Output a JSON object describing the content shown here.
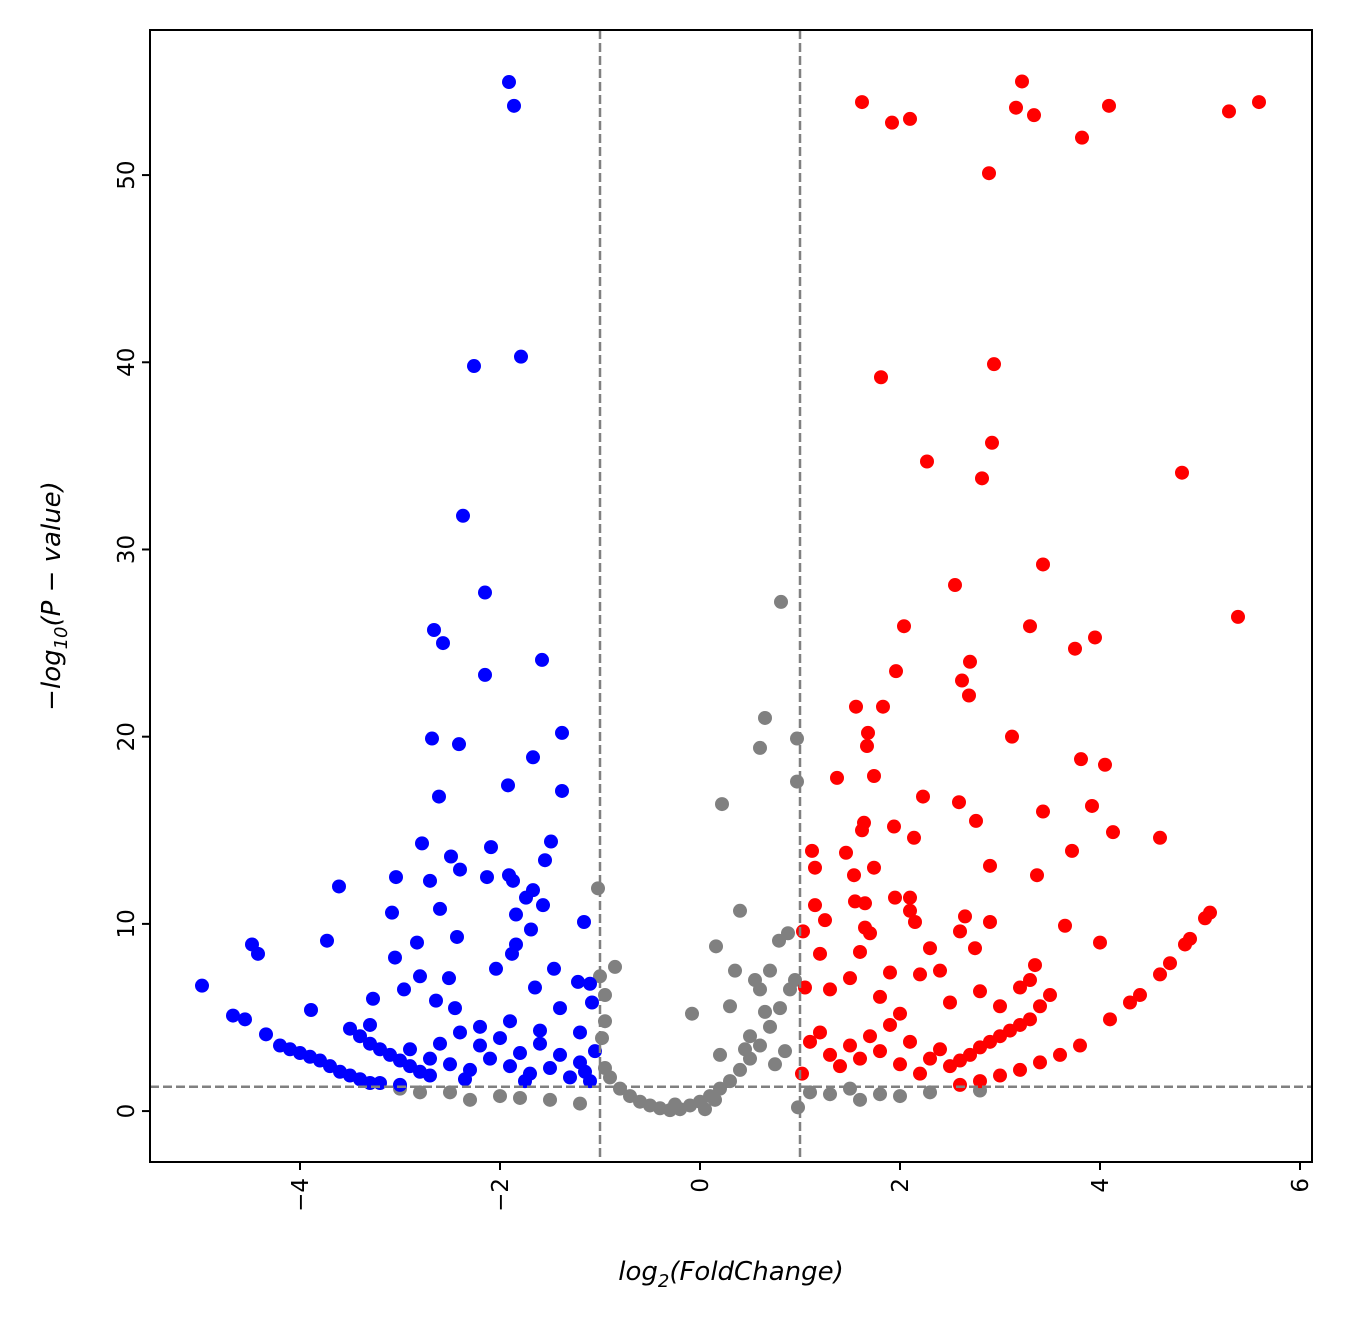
{
  "chart_data": {
    "type": "scatter",
    "title": "",
    "xlabel": {
      "base": "log",
      "sub": "2",
      "rest": "(FoldChange)"
    },
    "ylabel": {
      "base": "−log",
      "sub": "10",
      "rest": "(P − value)"
    },
    "xlim": [
      -5.5,
      6.12
    ],
    "ylim": [
      -2.72,
      57.75
    ],
    "x_ticks": [
      -4,
      -2,
      0,
      2,
      4,
      6
    ],
    "x_tick_labels": [
      "−4",
      "−2",
      "0",
      "2",
      "4",
      "6"
    ],
    "y_ticks": [
      0,
      10,
      20,
      30,
      40,
      50
    ],
    "y_tick_labels": [
      "0",
      "10",
      "20",
      "30",
      "40",
      "50"
    ],
    "grid": false,
    "threshold_lines": {
      "x": [
        -1,
        1
      ],
      "y": 1.3,
      "color": "#808080",
      "style": "dashed"
    },
    "series": [
      {
        "color": "#808080",
        "points": [
          [
            0.81,
            27.2
          ],
          [
            0.65,
            21.0
          ],
          [
            0.6,
            19.4
          ],
          [
            0.97,
            19.9
          ],
          [
            0.97,
            17.6
          ],
          [
            0.22,
            16.4
          ],
          [
            -1.02,
            11.9
          ],
          [
            0.4,
            10.7
          ],
          [
            0.16,
            8.8
          ],
          [
            -0.85,
            7.7
          ],
          [
            -0.08,
            5.2
          ],
          [
            0.79,
            9.1
          ],
          [
            0.88,
            9.5
          ],
          [
            -1.0,
            7.2
          ],
          [
            -0.9,
            1.8
          ],
          [
            -0.8,
            1.2
          ],
          [
            -0.7,
            0.8
          ],
          [
            -0.6,
            0.5
          ],
          [
            -0.5,
            0.3
          ],
          [
            -0.4,
            0.15
          ],
          [
            -0.3,
            0.05
          ],
          [
            -0.2,
            0.1
          ],
          [
            -0.1,
            0.3
          ],
          [
            0,
            0.5
          ],
          [
            0.1,
            0.8
          ],
          [
            0.2,
            1.2
          ],
          [
            0.3,
            1.6
          ],
          [
            0.4,
            2.2
          ],
          [
            0.5,
            2.8
          ],
          [
            0.6,
            3.5
          ],
          [
            0.7,
            4.5
          ],
          [
            0.8,
            5.5
          ],
          [
            0.9,
            6.5
          ],
          [
            0.95,
            7.0
          ],
          [
            0.5,
            4.0
          ],
          [
            0.6,
            6.5
          ],
          [
            0.7,
            7.5
          ],
          [
            0.3,
            5.6
          ],
          [
            0.35,
            7.5
          ],
          [
            0.55,
            7.0
          ],
          [
            0.45,
            3.3
          ],
          [
            0.65,
            5.3
          ],
          [
            0.85,
            3.2
          ],
          [
            0.75,
            2.5
          ],
          [
            0.2,
            3.0
          ],
          [
            -0.95,
            4.8
          ],
          [
            -0.95,
            6.2
          ],
          [
            -0.95,
            2.3
          ],
          [
            -0.98,
            3.9
          ],
          [
            -2.0,
            0.8
          ],
          [
            -3.0,
            1.2
          ],
          [
            -2.5,
            1.0
          ],
          [
            -1.5,
            0.6
          ],
          [
            -1.2,
            0.4
          ],
          [
            1.3,
            0.9
          ],
          [
            1.6,
            0.6
          ],
          [
            2.0,
            0.8
          ],
          [
            2.3,
            1.0
          ],
          [
            2.8,
            1.1
          ],
          [
            1.5,
            1.2
          ],
          [
            0.98,
            0.2
          ],
          [
            -1.8,
            0.7
          ],
          [
            -2.3,
            0.6
          ],
          [
            -2.8,
            1.0
          ],
          [
            1.8,
            0.9
          ],
          [
            1.1,
            1.0
          ],
          [
            0.05,
            0.1
          ],
          [
            -0.25,
            0.35
          ],
          [
            0.15,
            0.6
          ]
        ]
      },
      {
        "color": "#0000ff",
        "points": [
          [
            -1.91,
            54.97
          ],
          [
            -1.86,
            53.7
          ],
          [
            -1.79,
            40.3
          ],
          [
            -2.26,
            39.8
          ],
          [
            -2.37,
            31.8
          ],
          [
            -2.15,
            27.7
          ],
          [
            -2.66,
            25.7
          ],
          [
            -2.57,
            25.0
          ],
          [
            -1.58,
            24.1
          ],
          [
            -2.15,
            23.3
          ],
          [
            -1.38,
            20.2
          ],
          [
            -2.68,
            19.9
          ],
          [
            -2.41,
            19.6
          ],
          [
            -1.67,
            18.9
          ],
          [
            -1.92,
            17.4
          ],
          [
            -1.38,
            17.1
          ],
          [
            -2.61,
            16.8
          ],
          [
            -1.49,
            14.4
          ],
          [
            -2.78,
            14.3
          ],
          [
            -2.09,
            14.1
          ],
          [
            -2.49,
            13.6
          ],
          [
            -1.55,
            13.4
          ],
          [
            -2.4,
            12.9
          ],
          [
            -1.91,
            12.6
          ],
          [
            -2.13,
            12.5
          ],
          [
            -3.04,
            12.5
          ],
          [
            -2.7,
            12.3
          ],
          [
            -1.87,
            12.3
          ],
          [
            -3.61,
            12.0
          ],
          [
            -1.67,
            11.8
          ],
          [
            -1.74,
            11.4
          ],
          [
            -1.57,
            11.0
          ],
          [
            -3.08,
            10.6
          ],
          [
            -2.6,
            10.8
          ],
          [
            -1.84,
            10.5
          ],
          [
            -1.16,
            10.1
          ],
          [
            -1.69,
            9.7
          ],
          [
            -2.43,
            9.3
          ],
          [
            -1.84,
            8.9
          ],
          [
            -4.48,
            8.9
          ],
          [
            -3.73,
            9.1
          ],
          [
            -2.83,
            9.0
          ],
          [
            -4.42,
            8.4
          ],
          [
            -3.05,
            8.2
          ],
          [
            -1.88,
            8.4
          ],
          [
            -2.04,
            7.6
          ],
          [
            -1.46,
            7.6
          ],
          [
            -2.8,
            7.2
          ],
          [
            -2.51,
            7.1
          ],
          [
            -1.22,
            6.9
          ],
          [
            -4.98,
            6.7
          ],
          [
            -2.96,
            6.5
          ],
          [
            -1.65,
            6.6
          ],
          [
            -3.27,
            6.0
          ],
          [
            -2.64,
            5.9
          ],
          [
            -4.67,
            5.1
          ],
          [
            -4.55,
            4.9
          ],
          [
            -3.89,
            5.4
          ],
          [
            -4.34,
            4.1
          ],
          [
            -4.2,
            3.5
          ],
          [
            -4.1,
            3.3
          ],
          [
            -4.0,
            3.1
          ],
          [
            -3.9,
            2.9
          ],
          [
            -3.8,
            2.7
          ],
          [
            -3.7,
            2.4
          ],
          [
            -3.6,
            2.1
          ],
          [
            -3.5,
            1.9
          ],
          [
            -3.4,
            1.7
          ],
          [
            -3.3,
            1.5
          ],
          [
            -3.2,
            1.5
          ],
          [
            -3.5,
            4.4
          ],
          [
            -3.4,
            4.0
          ],
          [
            -3.3,
            3.6
          ],
          [
            -3.2,
            3.3
          ],
          [
            -3.1,
            3.0
          ],
          [
            -3.0,
            2.7
          ],
          [
            -2.9,
            2.4
          ],
          [
            -2.8,
            2.1
          ],
          [
            -2.7,
            1.9
          ],
          [
            -3.3,
            4.6
          ],
          [
            -3.0,
            1.4
          ],
          [
            -2.9,
            3.3
          ],
          [
            -2.7,
            2.8
          ],
          [
            -2.5,
            2.5
          ],
          [
            -2.3,
            2.2
          ],
          [
            -2.2,
            3.5
          ],
          [
            -2.1,
            2.8
          ],
          [
            -2.0,
            3.9
          ],
          [
            -1.9,
            2.4
          ],
          [
            -1.8,
            3.1
          ],
          [
            -1.7,
            2.0
          ],
          [
            -1.6,
            3.6
          ],
          [
            -1.5,
            2.3
          ],
          [
            -1.4,
            3.0
          ],
          [
            -1.3,
            1.8
          ],
          [
            -1.2,
            2.6
          ],
          [
            -1.1,
            1.6
          ],
          [
            -1.05,
            3.2
          ],
          [
            -2.4,
            4.2
          ],
          [
            -2.2,
            4.5
          ],
          [
            -1.9,
            4.8
          ],
          [
            -1.6,
            4.3
          ],
          [
            -1.4,
            5.5
          ],
          [
            -1.2,
            4.2
          ],
          [
            -2.6,
            3.6
          ],
          [
            -2.35,
            1.7
          ],
          [
            -1.75,
            1.6
          ],
          [
            -1.15,
            2.1
          ],
          [
            -1.08,
            5.8
          ],
          [
            -1.1,
            6.8
          ],
          [
            -2.45,
            5.5
          ]
        ]
      },
      {
        "color": "#ff0000",
        "points": [
          [
            3.22,
            55.0
          ],
          [
            1.62,
            53.9
          ],
          [
            5.59,
            53.9
          ],
          [
            4.09,
            53.7
          ],
          [
            3.16,
            53.6
          ],
          [
            5.29,
            53.4
          ],
          [
            3.34,
            53.2
          ],
          [
            2.1,
            53.0
          ],
          [
            1.92,
            52.8
          ],
          [
            3.82,
            52.0
          ],
          [
            2.89,
            50.1
          ],
          [
            2.94,
            39.9
          ],
          [
            1.81,
            39.2
          ],
          [
            2.92,
            35.7
          ],
          [
            2.27,
            34.7
          ],
          [
            4.82,
            34.1
          ],
          [
            2.82,
            33.8
          ],
          [
            3.43,
            29.2
          ],
          [
            2.55,
            28.1
          ],
          [
            5.38,
            26.4
          ],
          [
            2.04,
            25.9
          ],
          [
            3.3,
            25.9
          ],
          [
            3.95,
            25.3
          ],
          [
            3.75,
            24.7
          ],
          [
            2.7,
            24.0
          ],
          [
            1.96,
            23.5
          ],
          [
            2.62,
            23.0
          ],
          [
            2.69,
            22.2
          ],
          [
            1.56,
            21.6
          ],
          [
            1.83,
            21.6
          ],
          [
            1.68,
            20.2
          ],
          [
            3.12,
            20.0
          ],
          [
            1.67,
            19.5
          ],
          [
            3.81,
            18.8
          ],
          [
            4.05,
            18.5
          ],
          [
            1.74,
            17.9
          ],
          [
            1.37,
            17.8
          ],
          [
            2.23,
            16.8
          ],
          [
            2.59,
            16.5
          ],
          [
            3.92,
            16.3
          ],
          [
            3.43,
            16.0
          ],
          [
            2.76,
            15.5
          ],
          [
            1.64,
            15.4
          ],
          [
            1.94,
            15.2
          ],
          [
            1.62,
            15.0
          ],
          [
            4.13,
            14.9
          ],
          [
            2.14,
            14.6
          ],
          [
            4.6,
            14.6
          ],
          [
            1.12,
            13.9
          ],
          [
            3.72,
            13.9
          ],
          [
            1.46,
            13.8
          ],
          [
            2.9,
            13.1
          ],
          [
            1.15,
            13.0
          ],
          [
            1.74,
            13.0
          ],
          [
            3.37,
            12.6
          ],
          [
            1.54,
            12.6
          ],
          [
            1.1,
            3.7
          ],
          [
            1.2,
            4.2
          ],
          [
            1.3,
            3.0
          ],
          [
            1.4,
            2.4
          ],
          [
            1.5,
            3.5
          ],
          [
            1.6,
            2.8
          ],
          [
            1.7,
            4.0
          ],
          [
            1.8,
            3.2
          ],
          [
            1.9,
            4.6
          ],
          [
            2.0,
            2.5
          ],
          [
            2.1,
            3.7
          ],
          [
            2.2,
            2.0
          ],
          [
            2.3,
            2.8
          ],
          [
            2.4,
            3.3
          ],
          [
            2.5,
            2.4
          ],
          [
            2.6,
            2.7
          ],
          [
            2.7,
            3.0
          ],
          [
            2.8,
            3.4
          ],
          [
            2.9,
            3.7
          ],
          [
            3.0,
            4.0
          ],
          [
            3.1,
            4.3
          ],
          [
            3.2,
            4.6
          ],
          [
            3.3,
            4.9
          ],
          [
            2.6,
            1.4
          ],
          [
            2.8,
            1.6
          ],
          [
            3.0,
            1.9
          ],
          [
            3.2,
            2.2
          ],
          [
            3.4,
            2.6
          ],
          [
            3.6,
            3.0
          ],
          [
            3.8,
            3.5
          ],
          [
            4.1,
            4.9
          ],
          [
            4.3,
            5.8
          ],
          [
            4.4,
            6.2
          ],
          [
            4.6,
            7.3
          ],
          [
            4.7,
            7.9
          ],
          [
            4.9,
            9.2
          ],
          [
            5.1,
            10.6
          ],
          [
            5.05,
            10.3
          ],
          [
            4.85,
            8.9
          ],
          [
            2.5,
            5.8
          ],
          [
            2.8,
            6.4
          ],
          [
            3.0,
            5.6
          ],
          [
            3.2,
            6.6
          ],
          [
            3.3,
            7.0
          ],
          [
            3.4,
            5.6
          ],
          [
            3.5,
            6.2
          ],
          [
            2.2,
            7.3
          ],
          [
            1.6,
            8.5
          ],
          [
            1.9,
            7.4
          ],
          [
            1.2,
            8.4
          ],
          [
            1.3,
            6.5
          ],
          [
            1.5,
            7.1
          ],
          [
            1.8,
            6.1
          ],
          [
            2.0,
            5.2
          ],
          [
            2.4,
            7.5
          ],
          [
            2.3,
            8.7
          ],
          [
            2.1,
            10.7
          ],
          [
            2.15,
            10.1
          ],
          [
            1.95,
            11.4
          ],
          [
            2.1,
            11.4
          ],
          [
            1.55,
            11.2
          ],
          [
            1.65,
            11.1
          ],
          [
            1.7,
            9.5
          ],
          [
            1.65,
            9.8
          ],
          [
            1.15,
            11.0
          ],
          [
            1.25,
            10.2
          ],
          [
            2.65,
            10.4
          ],
          [
            2.9,
            10.1
          ],
          [
            2.6,
            9.6
          ],
          [
            2.75,
            8.7
          ],
          [
            3.65,
            9.9
          ],
          [
            3.35,
            7.8
          ],
          [
            4.0,
            9.0
          ],
          [
            1.03,
            9.6
          ],
          [
            1.02,
            2.0
          ],
          [
            1.05,
            6.6
          ]
        ]
      }
    ]
  }
}
